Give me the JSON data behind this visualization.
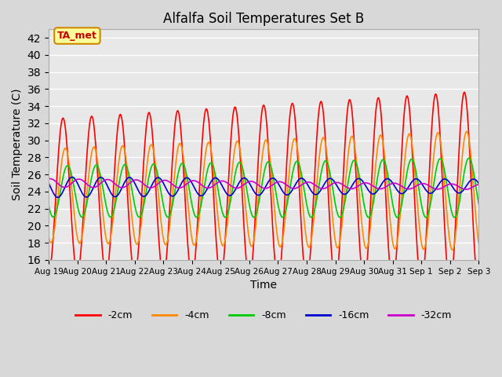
{
  "title": "Alfalfa Soil Temperatures Set B",
  "xlabel": "Time",
  "ylabel": "Soil Temperature (C)",
  "ylim": [
    16,
    43
  ],
  "yticks": [
    16,
    18,
    20,
    22,
    24,
    26,
    28,
    30,
    32,
    34,
    36,
    38,
    40,
    42
  ],
  "bg_color": "#e8e8e8",
  "plot_bg_color": "#e8e8e8",
  "line_colors": {
    "-2cm": "#ff0000",
    "-4cm": "#ff8800",
    "-8cm": "#00cc00",
    "-16cm": "#0000cc",
    "-32cm": "#cc00cc"
  },
  "annotation_text": "TA_met",
  "annotation_color": "#cc0000",
  "annotation_bg": "#ffff99",
  "annotation_border": "#cc8800",
  "n_days": 15,
  "t_start": 0,
  "t_end": 15,
  "points_per_day": 48,
  "series_params": {
    "-2cm": {
      "base": 23.5,
      "amp_start": 9.0,
      "amp_end": 11.5,
      "phase": 0.0,
      "trend": 0.05
    },
    "-4cm": {
      "base": 23.5,
      "amp_start": 5.5,
      "amp_end": 7.0,
      "phase": 0.5,
      "trend": 0.04
    },
    "-8cm": {
      "base": 24.0,
      "amp_start": 3.0,
      "amp_end": 3.5,
      "phase": 1.0,
      "trend": 0.03
    },
    "-16cm": {
      "base": 24.5,
      "amp_start": 1.2,
      "amp_end": 0.8,
      "phase": 2.0,
      "trend": 0.01
    },
    "-32cm": {
      "base": 25.0,
      "amp_start": 0.5,
      "amp_end": 0.3,
      "phase": 3.5,
      "trend": -0.03
    }
  },
  "x_tick_labels": [
    "Aug 19",
    "Aug 20",
    "Aug 21",
    "Aug 22",
    "Aug 23",
    "Aug 24",
    "Aug 25",
    "Aug 26",
    "Aug 27",
    "Aug 28",
    "Aug 29",
    "Aug 30",
    "Aug 31",
    "Sep 1",
    "Sep 2",
    "Sep 3"
  ],
  "x_tick_positions": [
    0,
    1,
    2,
    3,
    4,
    5,
    6,
    7,
    8,
    9,
    10,
    11,
    12,
    13,
    14,
    15
  ]
}
